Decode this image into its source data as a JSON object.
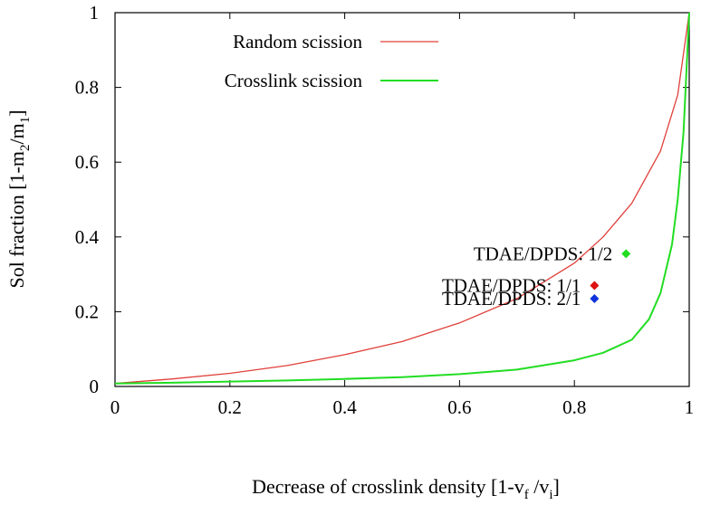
{
  "chart_data": {
    "type": "line",
    "title": "",
    "xlabel": {
      "main": "Decrease of crosslink density [1-v",
      "sub1": "f",
      "mid": " /v",
      "sub2": "i",
      "end": "]"
    },
    "ylabel": {
      "main": "Sol fraction [1-m",
      "sub1": "2",
      "mid": "/m",
      "sub2": "1",
      "end": "]"
    },
    "xlim": [
      0,
      1
    ],
    "ylim": [
      0,
      1
    ],
    "xticks": [
      {
        "value": 0,
        "label": "0"
      },
      {
        "value": 0.2,
        "label": "0.2"
      },
      {
        "value": 0.4,
        "label": "0.4"
      },
      {
        "value": 0.6,
        "label": "0.6"
      },
      {
        "value": 0.8,
        "label": "0.8"
      },
      {
        "value": 1,
        "label": "1"
      }
    ],
    "yticks": [
      {
        "value": 0,
        "label": "0"
      },
      {
        "value": 0.2,
        "label": "0.2"
      },
      {
        "value": 0.4,
        "label": "0.4"
      },
      {
        "value": 0.6,
        "label": "0.6"
      },
      {
        "value": 0.8,
        "label": "0.8"
      },
      {
        "value": 1,
        "label": "1"
      }
    ],
    "grid": false,
    "legend_position": "top-left",
    "series": [
      {
        "name": "Random scission",
        "color": "#e0403a",
        "points": [
          [
            0,
            0.008
          ],
          [
            0.1,
            0.02
          ],
          [
            0.2,
            0.035
          ],
          [
            0.3,
            0.056
          ],
          [
            0.4,
            0.085
          ],
          [
            0.5,
            0.12
          ],
          [
            0.6,
            0.17
          ],
          [
            0.7,
            0.235
          ],
          [
            0.8,
            0.33
          ],
          [
            0.85,
            0.4
          ],
          [
            0.9,
            0.49
          ],
          [
            0.95,
            0.63
          ],
          [
            0.98,
            0.78
          ],
          [
            1,
            1
          ]
        ]
      },
      {
        "name": "Crosslink scission",
        "color": "#22dd22",
        "points": [
          [
            0,
            0.008
          ],
          [
            0.1,
            0.01
          ],
          [
            0.2,
            0.013
          ],
          [
            0.3,
            0.016
          ],
          [
            0.4,
            0.02
          ],
          [
            0.5,
            0.025
          ],
          [
            0.6,
            0.033
          ],
          [
            0.7,
            0.045
          ],
          [
            0.8,
            0.07
          ],
          [
            0.85,
            0.09
          ],
          [
            0.9,
            0.125
          ],
          [
            0.93,
            0.18
          ],
          [
            0.95,
            0.25
          ],
          [
            0.97,
            0.38
          ],
          [
            0.98,
            0.5
          ],
          [
            0.99,
            0.68
          ],
          [
            1,
            1
          ]
        ]
      }
    ],
    "markers": [
      {
        "name": "TDAE/DPDS: 1/2",
        "x": 0.89,
        "y": 0.355,
        "color": "#22dd22"
      },
      {
        "name": "TDAE/DPDS: 1/1",
        "x": 0.835,
        "y": 0.27,
        "color": "#dd1111"
      },
      {
        "name": "TDAE/DPDS: 2/1",
        "x": 0.835,
        "y": 0.235,
        "color": "#1133dd"
      }
    ]
  }
}
